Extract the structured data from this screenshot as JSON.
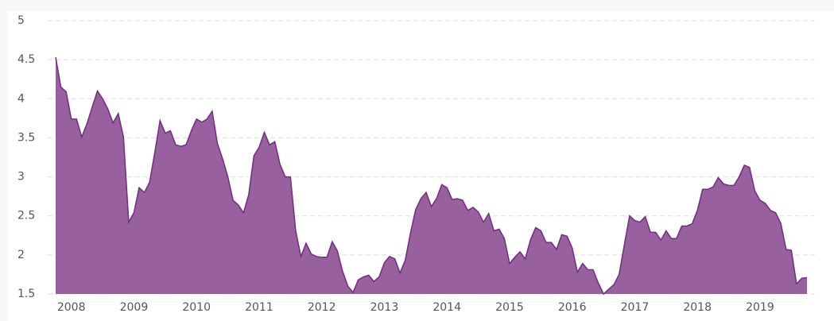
{
  "chart_data": {
    "type": "area",
    "color": "#9960a0",
    "line_color": "#6e2f7c",
    "grid": true,
    "x": [
      2007.75,
      2007.833,
      2007.917,
      2008,
      2008.083,
      2008.167,
      2008.25,
      2008.333,
      2008.417,
      2008.5,
      2008.583,
      2008.667,
      2008.75,
      2008.833,
      2008.917,
      2009,
      2009.083,
      2009.167,
      2009.25,
      2009.333,
      2009.417,
      2009.5,
      2009.583,
      2009.667,
      2009.75,
      2009.833,
      2009.917,
      2010,
      2010.083,
      2010.167,
      2010.25,
      2010.333,
      2010.417,
      2010.5,
      2010.583,
      2010.667,
      2010.75,
      2010.833,
      2010.917,
      2011,
      2011.083,
      2011.167,
      2011.25,
      2011.333,
      2011.417,
      2011.5,
      2011.583,
      2011.667,
      2011.75,
      2011.833,
      2011.917,
      2012,
      2012.083,
      2012.167,
      2012.25,
      2012.333,
      2012.417,
      2012.5,
      2012.583,
      2012.667,
      2012.75,
      2012.833,
      2012.917,
      2013,
      2013.083,
      2013.167,
      2013.25,
      2013.333,
      2013.417,
      2013.5,
      2013.583,
      2013.667,
      2013.75,
      2013.833,
      2013.917,
      2014,
      2014.083,
      2014.167,
      2014.25,
      2014.333,
      2014.417,
      2014.5,
      2014.583,
      2014.667,
      2014.75,
      2014.833,
      2014.917,
      2015,
      2015.083,
      2015.167,
      2015.25,
      2015.333,
      2015.417,
      2015.5,
      2015.583,
      2015.667,
      2015.75,
      2015.833,
      2015.917,
      2016,
      2016.083,
      2016.167,
      2016.25,
      2016.333,
      2016.417,
      2016.5,
      2016.583,
      2016.667,
      2016.75,
      2016.833,
      2016.917,
      2017,
      2017.083,
      2017.167,
      2017.25,
      2017.333,
      2017.417,
      2017.5,
      2017.583,
      2017.667,
      2017.75,
      2017.833,
      2017.917,
      2018,
      2018.083,
      2018.167,
      2018.25,
      2018.333,
      2018.417,
      2018.5,
      2018.583,
      2018.667,
      2018.75,
      2018.833,
      2018.917,
      2019,
      2019.083,
      2019.167,
      2019.25,
      2019.333,
      2019.417,
      2019.5,
      2019.583,
      2019.667,
      2019.75
    ],
    "values": [
      4.53,
      4.15,
      4.09,
      3.74,
      3.74,
      3.51,
      3.68,
      3.89,
      4.1,
      4.0,
      3.87,
      3.69,
      3.81,
      3.51,
      2.42,
      2.54,
      2.86,
      2.8,
      2.93,
      3.31,
      3.72,
      3.56,
      3.59,
      3.41,
      3.39,
      3.41,
      3.59,
      3.74,
      3.7,
      3.74,
      3.84,
      3.43,
      3.23,
      3.0,
      2.7,
      2.64,
      2.54,
      2.77,
      3.27,
      3.38,
      3.57,
      3.41,
      3.45,
      3.16,
      3.0,
      3.0,
      2.31,
      1.98,
      2.15,
      2.01,
      1.98,
      1.97,
      1.97,
      2.17,
      2.05,
      1.79,
      1.6,
      1.52,
      1.68,
      1.72,
      1.74,
      1.66,
      1.72,
      1.9,
      1.98,
      1.95,
      1.77,
      1.93,
      2.28,
      2.58,
      2.72,
      2.8,
      2.62,
      2.72,
      2.9,
      2.86,
      2.71,
      2.72,
      2.7,
      2.57,
      2.61,
      2.55,
      2.42,
      2.53,
      2.31,
      2.33,
      2.21,
      1.89,
      1.97,
      2.04,
      1.95,
      2.19,
      2.35,
      2.31,
      2.16,
      2.16,
      2.07,
      2.26,
      2.24,
      2.09,
      1.78,
      1.89,
      1.81,
      1.81,
      1.64,
      1.5,
      1.56,
      1.62,
      1.75,
      2.13,
      2.5,
      2.44,
      2.42,
      2.49,
      2.29,
      2.29,
      2.19,
      2.31,
      2.21,
      2.21,
      2.37,
      2.37,
      2.4,
      2.57,
      2.84,
      2.84,
      2.87,
      2.99,
      2.91,
      2.89,
      2.89,
      3.0,
      3.15,
      3.12,
      2.82,
      2.7,
      2.66,
      2.57,
      2.54,
      2.4,
      2.07,
      2.06,
      1.63,
      1.7,
      1.71
    ],
    "xlim": [
      2007.75,
      2019.75
    ],
    "xticks": [
      2008,
      2009,
      2010,
      2011,
      2012,
      2013,
      2014,
      2015,
      2016,
      2017,
      2018,
      2019
    ],
    "ylim": [
      1.5,
      5
    ],
    "yticks": [
      1.5,
      2,
      2.5,
      3,
      3.5,
      4,
      4.5,
      5
    ]
  }
}
